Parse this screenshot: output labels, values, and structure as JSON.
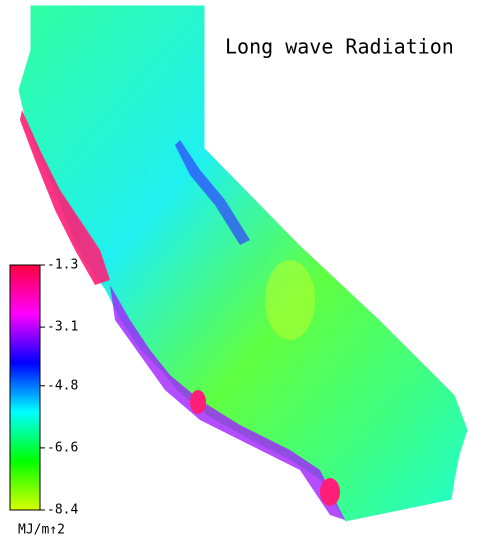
{
  "title": "Long wave Radiation",
  "colorbar": {
    "range": [
      -8.4,
      -1.3
    ],
    "ticks": [
      -1.3,
      -3.1,
      -4.8,
      -6.6,
      -8.4
    ],
    "colors": [
      "#d8ff00",
      "#00ff00",
      "#00ffff",
      "#0000ff",
      "#ff00ff",
      "#ff0040"
    ],
    "units": "MJ/m↑2"
  }
}
